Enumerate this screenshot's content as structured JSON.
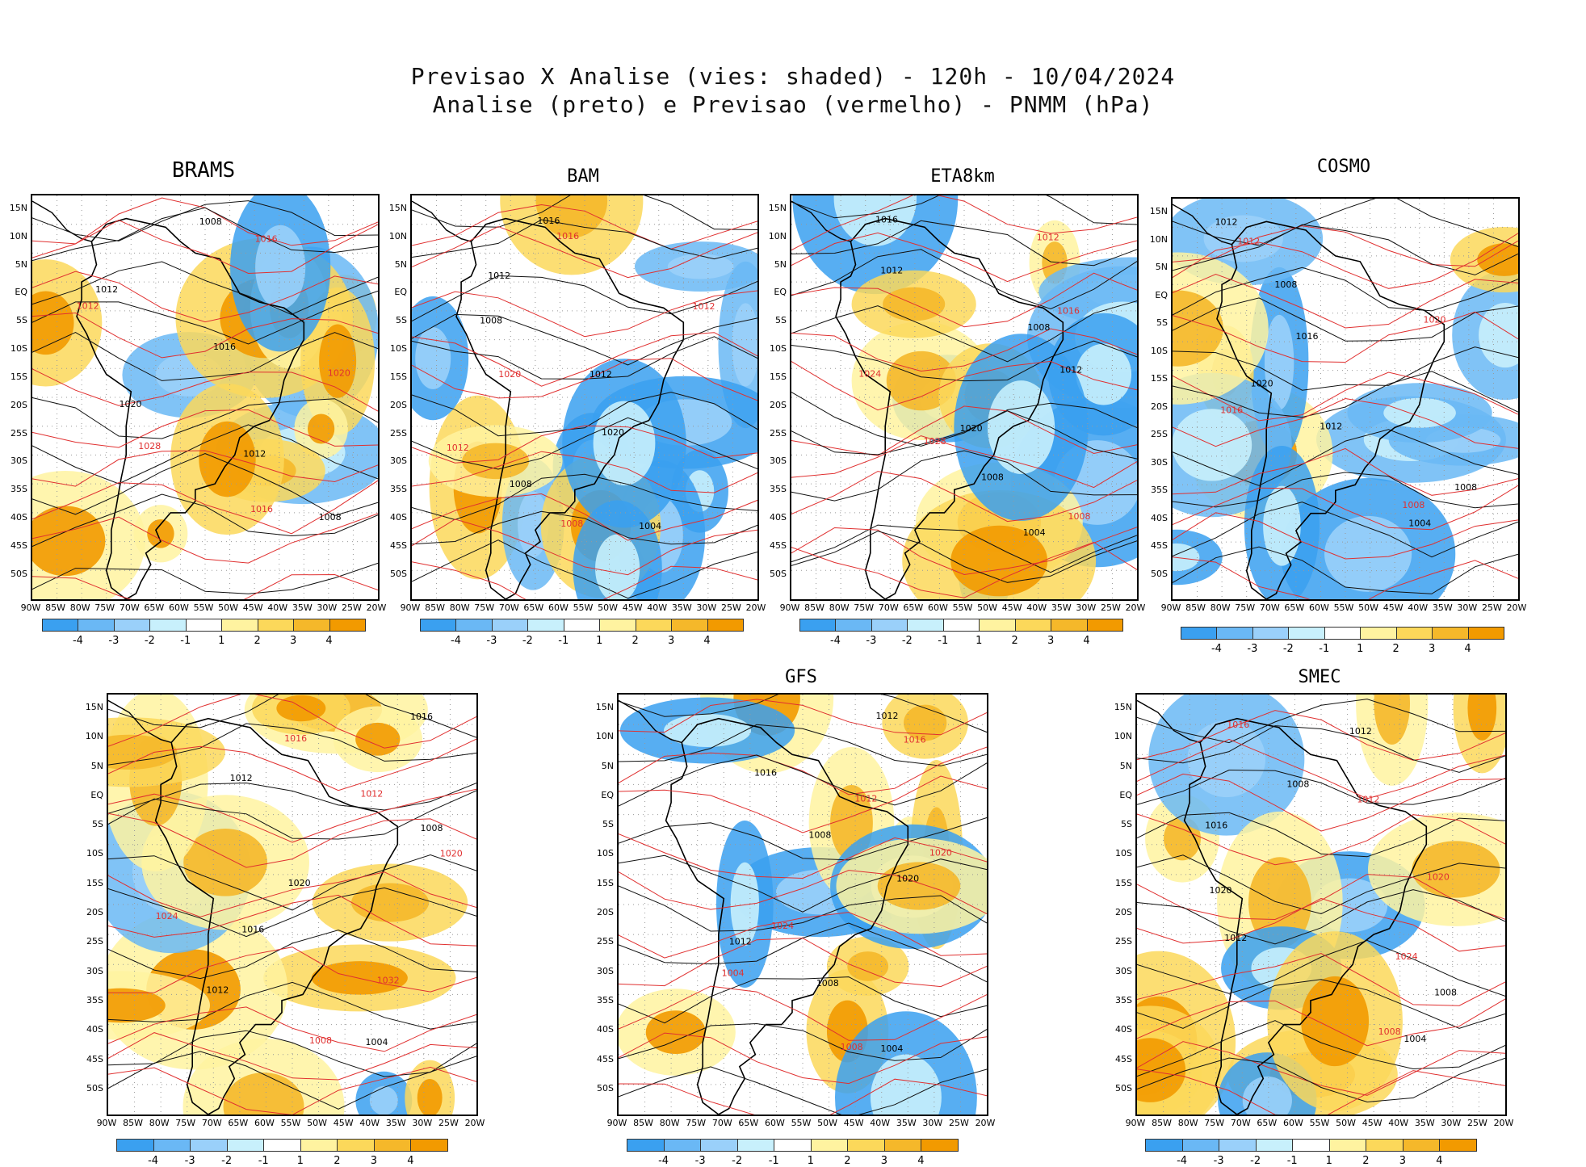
{
  "title_line1": "Previsao X Analise (vies: shaded) - 120h - 10/04/2024",
  "title_line2": "Analise (preto) e Previsao (vermelho) - PNMM (hPa)",
  "lat_labels": [
    "15N",
    "10N",
    "5N",
    "EQ",
    "5S",
    "10S",
    "15S",
    "20S",
    "25S",
    "30S",
    "35S",
    "40S",
    "45S",
    "50S"
  ],
  "lon_labels": [
    "90W",
    "85W",
    "80W",
    "75W",
    "70W",
    "65W",
    "60W",
    "55W",
    "50W",
    "45W",
    "40W",
    "35W",
    "30W",
    "25W",
    "20W"
  ],
  "colorbar": {
    "ticks": [
      "-4",
      "-3",
      "-2",
      "-1",
      "1",
      "2",
      "3",
      "4"
    ],
    "colors": [
      "#3aa0f0",
      "#6ab8f5",
      "#9ad0fa",
      "#c8f0fc",
      "#ffffff",
      "#fff3a0",
      "#fcd85a",
      "#f5b82a",
      "#f29a00"
    ]
  },
  "panels": [
    {
      "name": "BRAMS",
      "labels_black": [
        "1008",
        "1012",
        "1016",
        "1020",
        "1012",
        "1008"
      ],
      "labels_red": [
        "1016",
        "1012",
        "1020",
        "1028",
        "1016"
      ]
    },
    {
      "name": "BAM",
      "labels_black": [
        "1016",
        "1012",
        "1008",
        "1012",
        "1020",
        "1008",
        "1004"
      ],
      "labels_red": [
        "1016",
        "1012",
        "1020",
        "1012",
        "1008"
      ]
    },
    {
      "name": "ETA8km",
      "labels_black": [
        "1016",
        "1012",
        "1008",
        "1012",
        "1020",
        "1008",
        "1004"
      ],
      "labels_red": [
        "1012",
        "1016",
        "1024",
        "1028",
        "1008"
      ]
    },
    {
      "name": "COSMO",
      "labels_black": [
        "1012",
        "1008",
        "1016",
        "1020",
        "1012",
        "1008",
        "1004"
      ],
      "labels_red": [
        "1012",
        "1020",
        "1016",
        "1008"
      ]
    },
    {
      "name": "",
      "labels_black": [
        "1016",
        "1012",
        "1008",
        "1020",
        "1016",
        "1012",
        "1004"
      ],
      "labels_red": [
        "1016",
        "1012",
        "1020",
        "1024",
        "1032",
        "1008"
      ]
    },
    {
      "name": "GFS",
      "labels_black": [
        "1012",
        "1016",
        "1008",
        "1020",
        "1012",
        "1008",
        "1004"
      ],
      "labels_red": [
        "1016",
        "1012",
        "1020",
        "1024",
        "1004",
        "1008"
      ]
    },
    {
      "name": "SMEC",
      "labels_black": [
        "1012",
        "1008",
        "1016",
        "1020",
        "1012",
        "1008",
        "1004"
      ],
      "labels_red": [
        "1016",
        "1012",
        "1020",
        "1024",
        "1008"
      ]
    }
  ]
}
